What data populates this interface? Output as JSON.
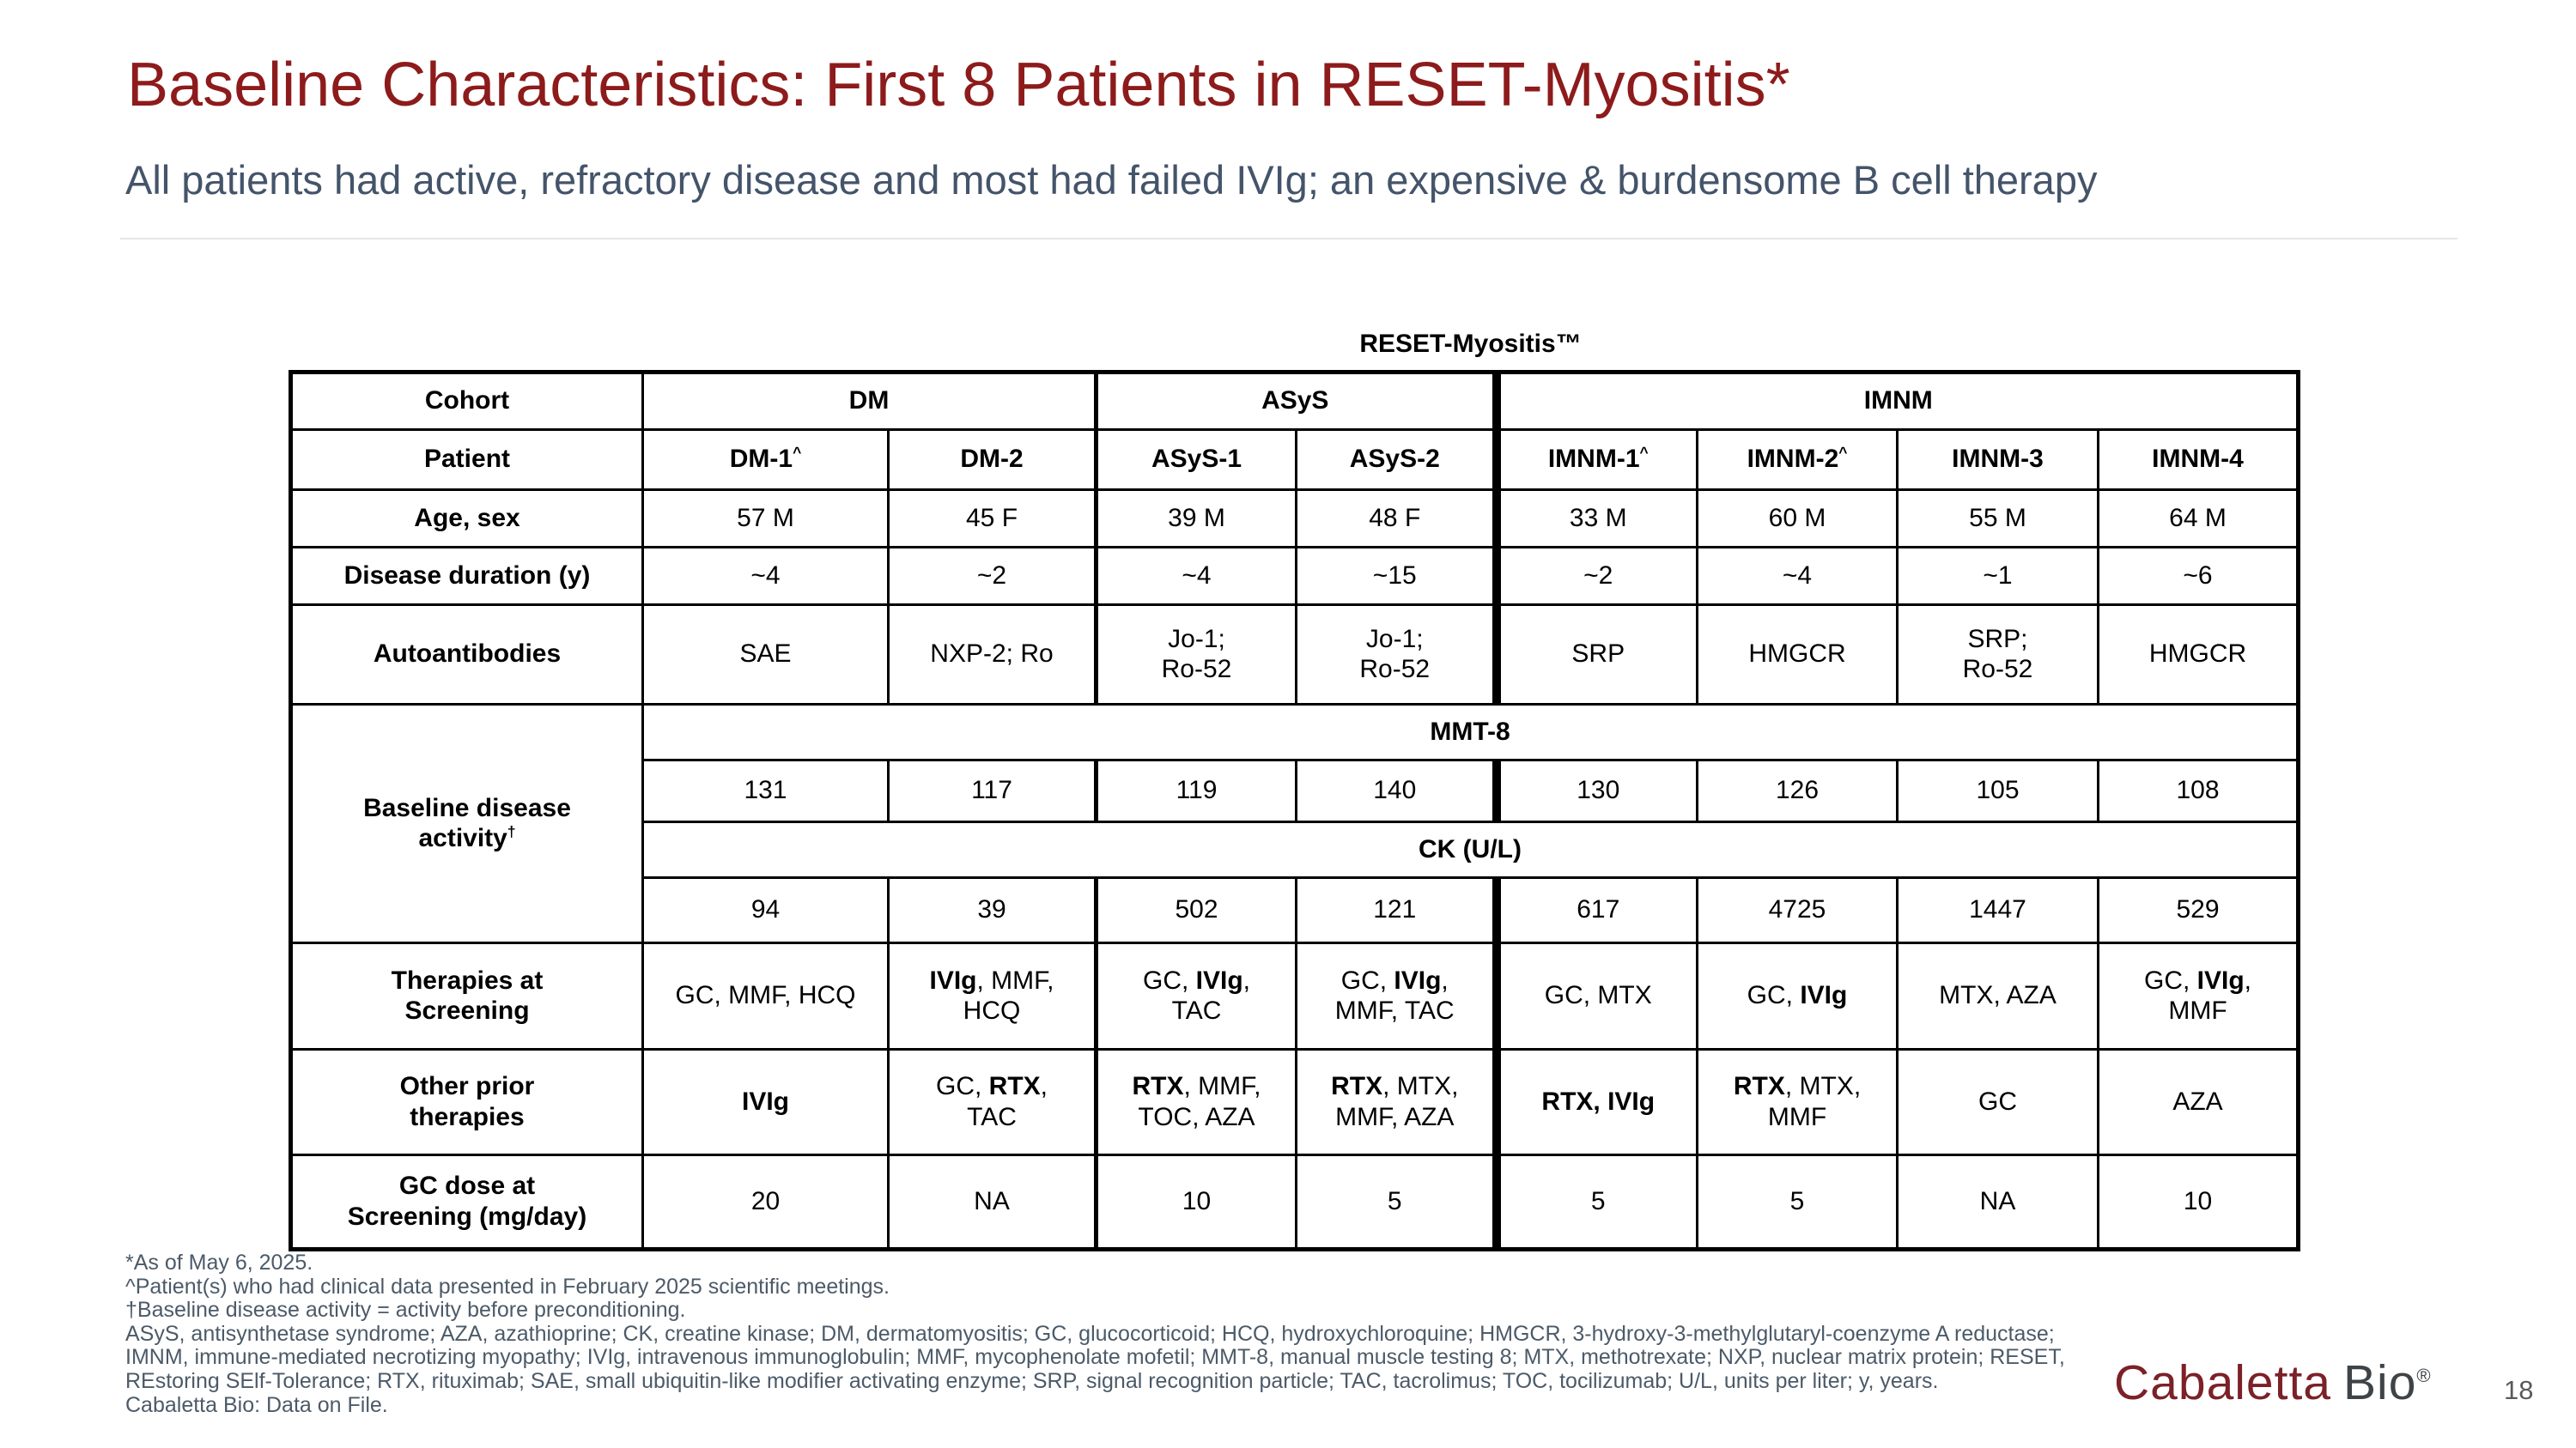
{
  "slide": {
    "title": "Baseline Characteristics: First 8 Patients in RESET-Myositis*",
    "subtitle": "All patients had active, refractory disease and most had failed IVIg; an expensive & burdensome B cell therapy",
    "page_number": "18",
    "logo": {
      "part1": "Cabaletta",
      "part2": "Bio",
      "registered": "®"
    }
  },
  "colors": {
    "title_red": "#8D1B1B",
    "subtitle_slate": "#44546A",
    "banner_blue": "#1F5788",
    "light_gray_band": "#EFEFEF",
    "shaded_cell_gray": "#CBCBCB"
  },
  "table": {
    "banner": "RESET-Myositis™",
    "corner_label": "Cohort",
    "groups": [
      {
        "label": "DM",
        "span": 2
      },
      {
        "label": "ASyS",
        "span": 2
      },
      {
        "label": "IMNM",
        "span": 4
      }
    ],
    "patient_row": {
      "label": "Patient",
      "cells": [
        "DM-1^",
        "DM-2",
        "ASyS-1",
        "ASyS-2",
        "IMNM-1^",
        "IMNM-2^",
        "IMNM-3",
        "IMNM-4"
      ]
    },
    "rows_top": [
      {
        "label": "Age, sex",
        "cells": [
          "57 M",
          "45 F",
          "39 M",
          "48 F",
          "33 M",
          "60 M",
          "55 M",
          "64 M"
        ]
      },
      {
        "label": "Disease duration (y)",
        "cells": [
          "~4",
          "~2",
          "~4",
          "~15",
          "~2",
          "~4",
          "~1",
          "~6"
        ]
      },
      {
        "label": "Autoantibodies",
        "cells": [
          "SAE",
          "NXP-2; Ro",
          "Jo-1;\nRo-52",
          "Jo-1;\nRo-52",
          "SRP",
          "HMGCR",
          "SRP;\nRo-52",
          "HMGCR"
        ]
      }
    ],
    "baseline_section": {
      "label": "Baseline disease\nactivity†",
      "mmt8_banner": "MMT-8",
      "mmt8_values": [
        "131",
        "117",
        "119",
        "140",
        "130",
        "126",
        "105",
        "108"
      ],
      "ck_banner": "CK (U/L)",
      "ck_values": [
        "94",
        "39",
        "502",
        "121",
        "617",
        "4725",
        "1447",
        "529"
      ]
    },
    "therapies_row": {
      "label": "Therapies at\nScreening",
      "cells": [
        "GC, MMF, HCQ",
        "**IVIg**, MMF,\nHCQ",
        "GC, **IVIg**,\nTAC",
        "GC, **IVIg**,\nMMF, TAC",
        "GC, MTX",
        "GC, **IVIg**",
        "MTX, AZA",
        "GC, **IVIg**,\nMMF"
      ]
    },
    "other_prior_row": {
      "label": "Other prior\ntherapies",
      "cells": [
        "**IVIg**",
        "GC, **RTX**,\nTAC",
        "**RTX**, MMF,\nTOC, AZA",
        "**RTX**, MTX,\nMMF, AZA",
        "**RTX, IVIg**",
        "**RTX**, MTX,\nMMF",
        "GC",
        "AZA"
      ]
    },
    "gc_dose_row": {
      "label": "GC dose at\nScreening (mg/day)",
      "cells": [
        "20",
        "NA",
        "10",
        "5",
        "5",
        "5",
        "NA",
        "10"
      ]
    }
  },
  "footnotes": [
    "*As of May 6, 2025.",
    "^Patient(s) who had clinical data presented in February 2025 scientific meetings.",
    "†Baseline disease activity = activity before preconditioning.",
    "ASyS, antisynthetase syndrome; AZA, azathioprine; CK, creatine kinase; DM, dermatomyositis; GC, glucocorticoid; HCQ, hydroxychloroquine; HMGCR, 3-hydroxy-3-methylglutaryl-coenzyme A reductase;",
    "IMNM, immune-mediated necrotizing myopathy; IVIg, intravenous immunoglobulin; MMF, mycophenolate mofetil; MMT-8, manual muscle testing 8; MTX, methotrexate; NXP, nuclear matrix protein; RESET,",
    "REstoring SElf-Tolerance; RTX, rituximab; SAE, small ubiquitin-like modifier activating enzyme; SRP, signal recognition particle; TAC, tacrolimus; TOC, tocilizumab; U/L, units per liter; y, years.",
    "Cabaletta Bio: Data on File."
  ]
}
